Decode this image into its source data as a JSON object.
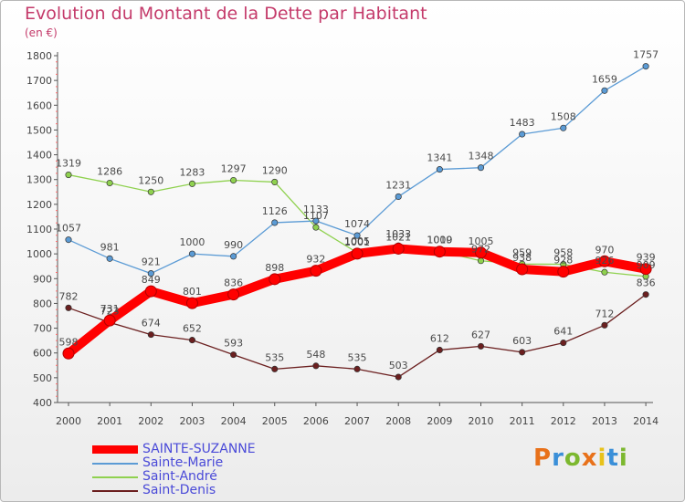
{
  "chart_data": {
    "type": "line",
    "title": "Evolution du Montant de la Dette par Habitant",
    "ylabel": "(en €)",
    "ylim": [
      400,
      1800
    ],
    "yticks": [
      400,
      500,
      600,
      700,
      800,
      900,
      1000,
      1100,
      1200,
      1300,
      1400,
      1500,
      1600,
      1700,
      1800
    ],
    "categories": [
      "2000",
      "2001",
      "2002",
      "2003",
      "2004",
      "2005",
      "2006",
      "2007",
      "2008",
      "2009",
      "2010",
      "2011",
      "2012",
      "2013",
      "2014"
    ],
    "series": [
      {
        "name": "SAINTE-SUZANNE",
        "color": "#ff0000",
        "values": [
          598,
          731,
          849,
          801,
          836,
          898,
          932,
          1001,
          1021,
          1009,
          1005,
          938,
          928,
          970,
          939
        ]
      },
      {
        "name": "Sainte-Marie",
        "color": "#5b9bd5",
        "values": [
          1057,
          981,
          921,
          1000,
          990,
          1126,
          1133,
          1074,
          1231,
          1341,
          1348,
          1483,
          1508,
          1659,
          1757
        ]
      },
      {
        "name": "Saint-André",
        "color": "#8fd14f",
        "values": [
          1319,
          1286,
          1250,
          1283,
          1297,
          1290,
          1107,
          1005,
          1033,
          1010,
          972,
          959,
          958,
          926,
          909
        ]
      },
      {
        "name": "Saint-Denis",
        "color": "#6b1f1f",
        "values": [
          782,
          723,
          674,
          652,
          593,
          535,
          548,
          535,
          503,
          612,
          627,
          603,
          641,
          712,
          836
        ]
      }
    ],
    "grid": false,
    "legend_position": "bottom-left"
  },
  "branding": {
    "logo_text": "Proxiti",
    "letter_colors": [
      "#e8711a",
      "#3a8fd8",
      "#7cb82f",
      "#e8711a",
      "#e8c21a",
      "#3a8fd8",
      "#7cb82f"
    ]
  }
}
